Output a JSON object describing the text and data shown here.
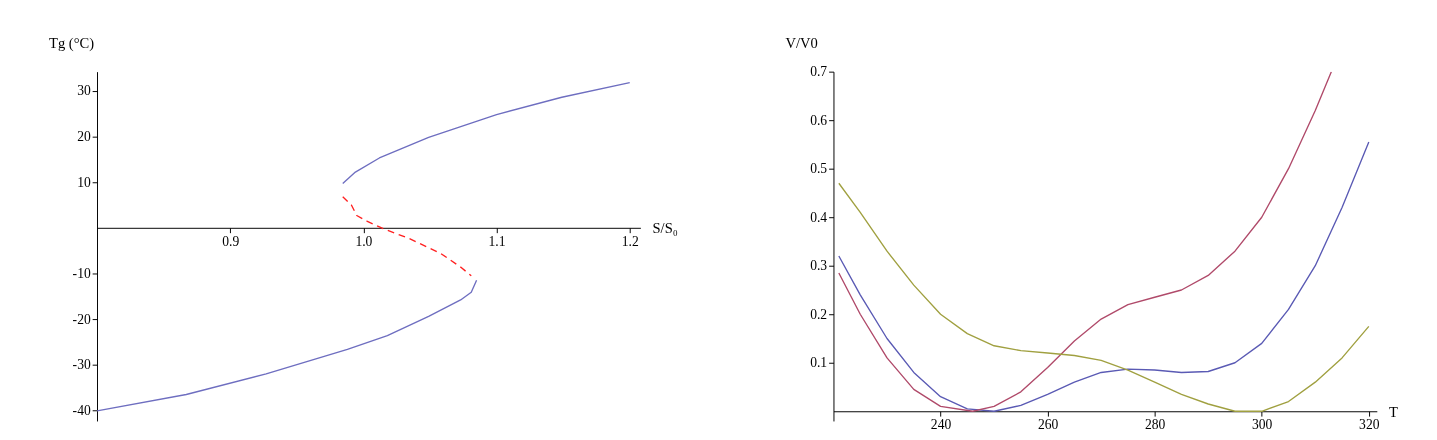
{
  "chart_data": [
    {
      "type": "line",
      "xlabel": "S/S₀",
      "ylabel": "Tg (°C)",
      "xlim": [
        0.8,
        1.208
      ],
      "ylim": [
        -42.3,
        34.2
      ],
      "xticks": [
        0.9,
        {
          "value": 1,
          "label": "1.0"
        },
        1.1,
        1.2
      ],
      "yticks": [
        -40,
        -30,
        -20,
        -10,
        10,
        20,
        30
      ],
      "grid": false,
      "series": [
        {
          "color": "#6e6ec0",
          "line_style": "solid",
          "x": [
            0.9845,
            0.994,
            1.012,
            1.049,
            1.1,
            1.149,
            1.2
          ],
          "values": [
            9.7,
            12.2,
            15.3,
            19.8,
            24.8,
            28.6,
            31.8
          ]
        },
        {
          "color": "#ff2020",
          "line_style": "dashed",
          "x": [
            0.9845,
            0.991,
            0.995,
            1.003,
            1.015,
            1.034,
            1.058,
            1.073,
            1.081
          ],
          "values": [
            6.8,
            5.0,
            2.7,
            1.4,
            -0.2,
            -2.3,
            -5.6,
            -8.6,
            -10.5
          ]
        },
        {
          "color": "#6e6ec0",
          "line_style": "solid",
          "x": [
            1.085,
            1.081,
            1.073,
            1.049,
            1.018,
            0.988,
            0.927,
            0.867,
            0.8
          ],
          "values": [
            -11.5,
            -14.1,
            -15.8,
            -19.4,
            -23.6,
            -26.6,
            -32,
            -36.5,
            -40.1
          ]
        }
      ]
    },
    {
      "type": "line",
      "xlabel": "T",
      "ylabel": "V/V0",
      "xlim": [
        220,
        321.5
      ],
      "ylim": [
        -0.02,
        0.7
      ],
      "xticks": [
        240,
        260,
        280,
        300,
        320
      ],
      "yticks": [
        0.1,
        0.2,
        0.3,
        0.4,
        0.5,
        0.6,
        0.7
      ],
      "grid": false,
      "series": [
        {
          "color": "#5a5ab4",
          "line_style": "solid",
          "x": [
            221,
            225,
            230,
            235,
            240,
            245,
            250,
            255,
            260,
            265,
            270,
            275,
            280,
            285,
            290,
            295,
            300,
            305,
            310,
            315,
            320
          ],
          "values": [
            0.32,
            0.24,
            0.15,
            0.08,
            0.03,
            0.005,
            0.0,
            0.012,
            0.035,
            0.06,
            0.08,
            0.087,
            0.085,
            0.08,
            0.082,
            0.1,
            0.14,
            0.21,
            0.3,
            0.42,
            0.555
          ]
        },
        {
          "color": "#b04a6a",
          "line_style": "solid",
          "x": [
            221,
            225,
            230,
            235,
            240,
            246,
            250,
            255,
            260,
            265,
            270,
            275,
            280,
            285,
            290,
            295,
            300,
            305,
            310,
            313
          ],
          "values": [
            0.285,
            0.2,
            0.11,
            0.045,
            0.01,
            0.0,
            0.01,
            0.04,
            0.09,
            0.145,
            0.19,
            0.22,
            0.235,
            0.25,
            0.28,
            0.33,
            0.4,
            0.5,
            0.62,
            0.7
          ]
        },
        {
          "color": "#a0a040",
          "line_style": "solid",
          "x": [
            221,
            225,
            230,
            235,
            240,
            245,
            250,
            255,
            260,
            265,
            270,
            275,
            280,
            285,
            290,
            295,
            300,
            305,
            310,
            315,
            320
          ],
          "values": [
            0.47,
            0.41,
            0.33,
            0.26,
            0.2,
            0.16,
            0.135,
            0.125,
            0.12,
            0.115,
            0.105,
            0.085,
            0.06,
            0.035,
            0.015,
            0.0,
            0.0,
            0.02,
            0.06,
            0.11,
            0.175
          ]
        }
      ]
    }
  ]
}
